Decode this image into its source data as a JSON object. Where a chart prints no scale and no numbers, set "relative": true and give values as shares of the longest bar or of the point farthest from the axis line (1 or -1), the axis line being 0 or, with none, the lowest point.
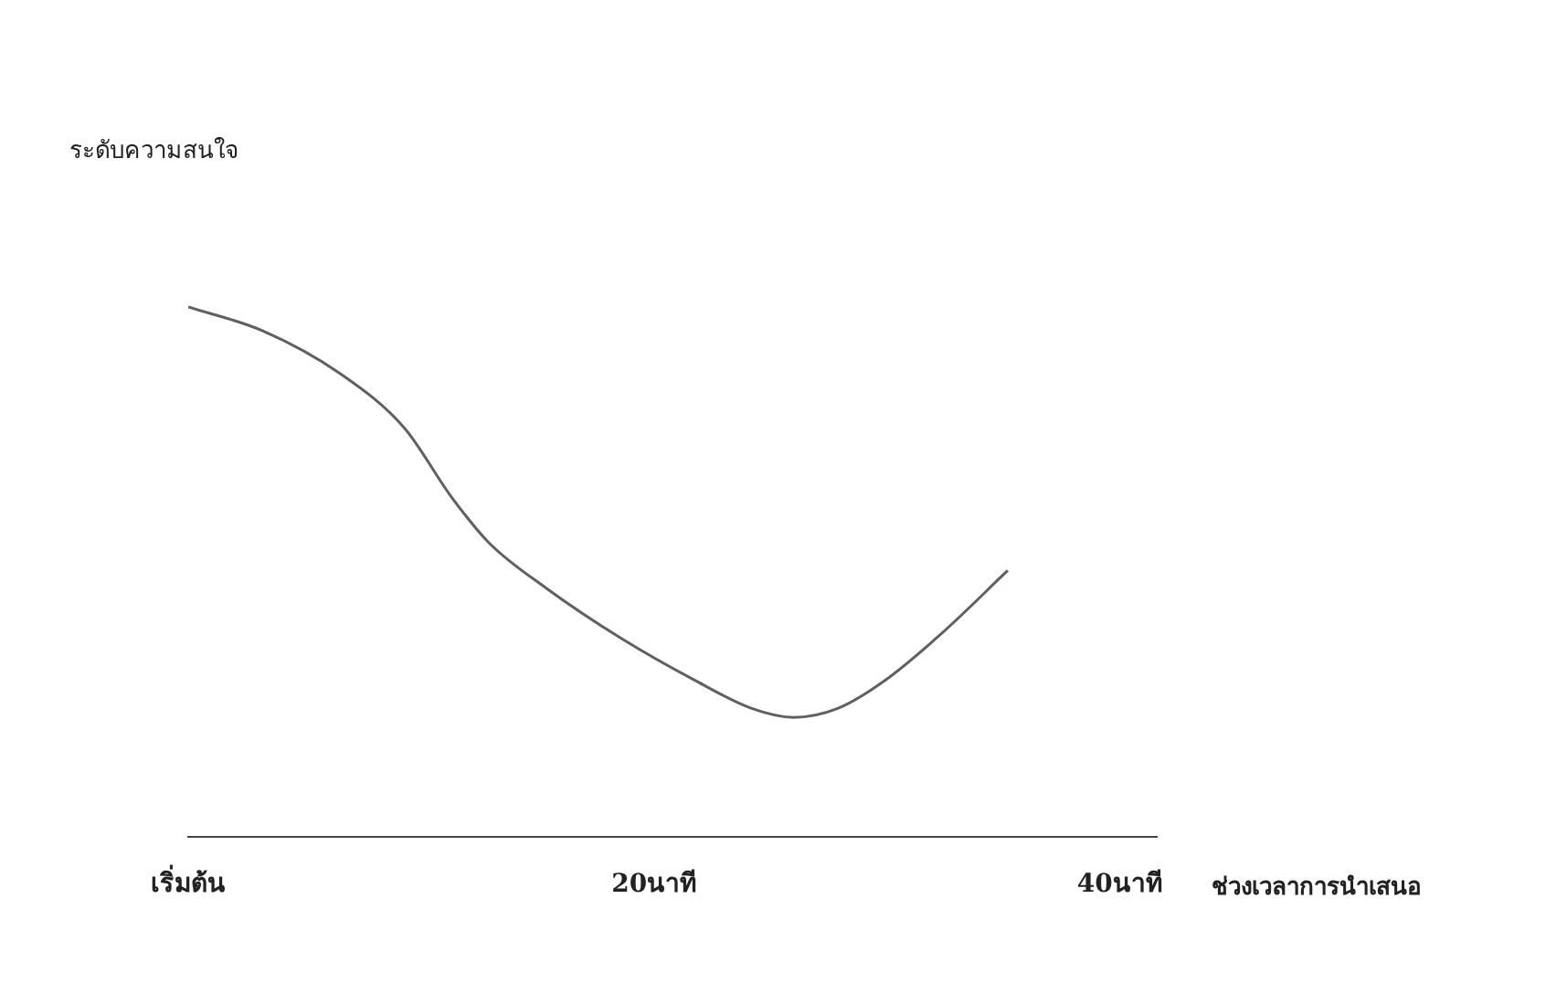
{
  "chart_data": {
    "type": "line",
    "relative": true,
    "annotations": [
      "ระดับความสนใจ"
    ],
    "xlabel": "ช่วงเวลาการนำเสนอ",
    "xlim": [
      0,
      41.6
    ],
    "xticks": [
      {
        "value": 0,
        "label": "เริ่มต้น"
      },
      {
        "value": 20,
        "label": "20นาที"
      },
      {
        "value": 40,
        "label": "40นาที"
      }
    ],
    "x": [
      0,
      3.2,
      6.5,
      9.3,
      11.3,
      12.9,
      15.4,
      18.6,
      21.8,
      24.2,
      26.0,
      27.9,
      29.9,
      32.3,
      35.2
    ],
    "series": [
      {
        "color": "#606060",
        "values": [
          1,
          0.955,
          0.875,
          0.771,
          0.642,
          0.556,
          0.469,
          0.375,
          0.295,
          0.243,
          0.226,
          0.243,
          0.295,
          0.382,
          0.503
        ]
      }
    ],
    "grid": false,
    "legend": false,
    "marker": "none",
    "line_style": "solid"
  }
}
